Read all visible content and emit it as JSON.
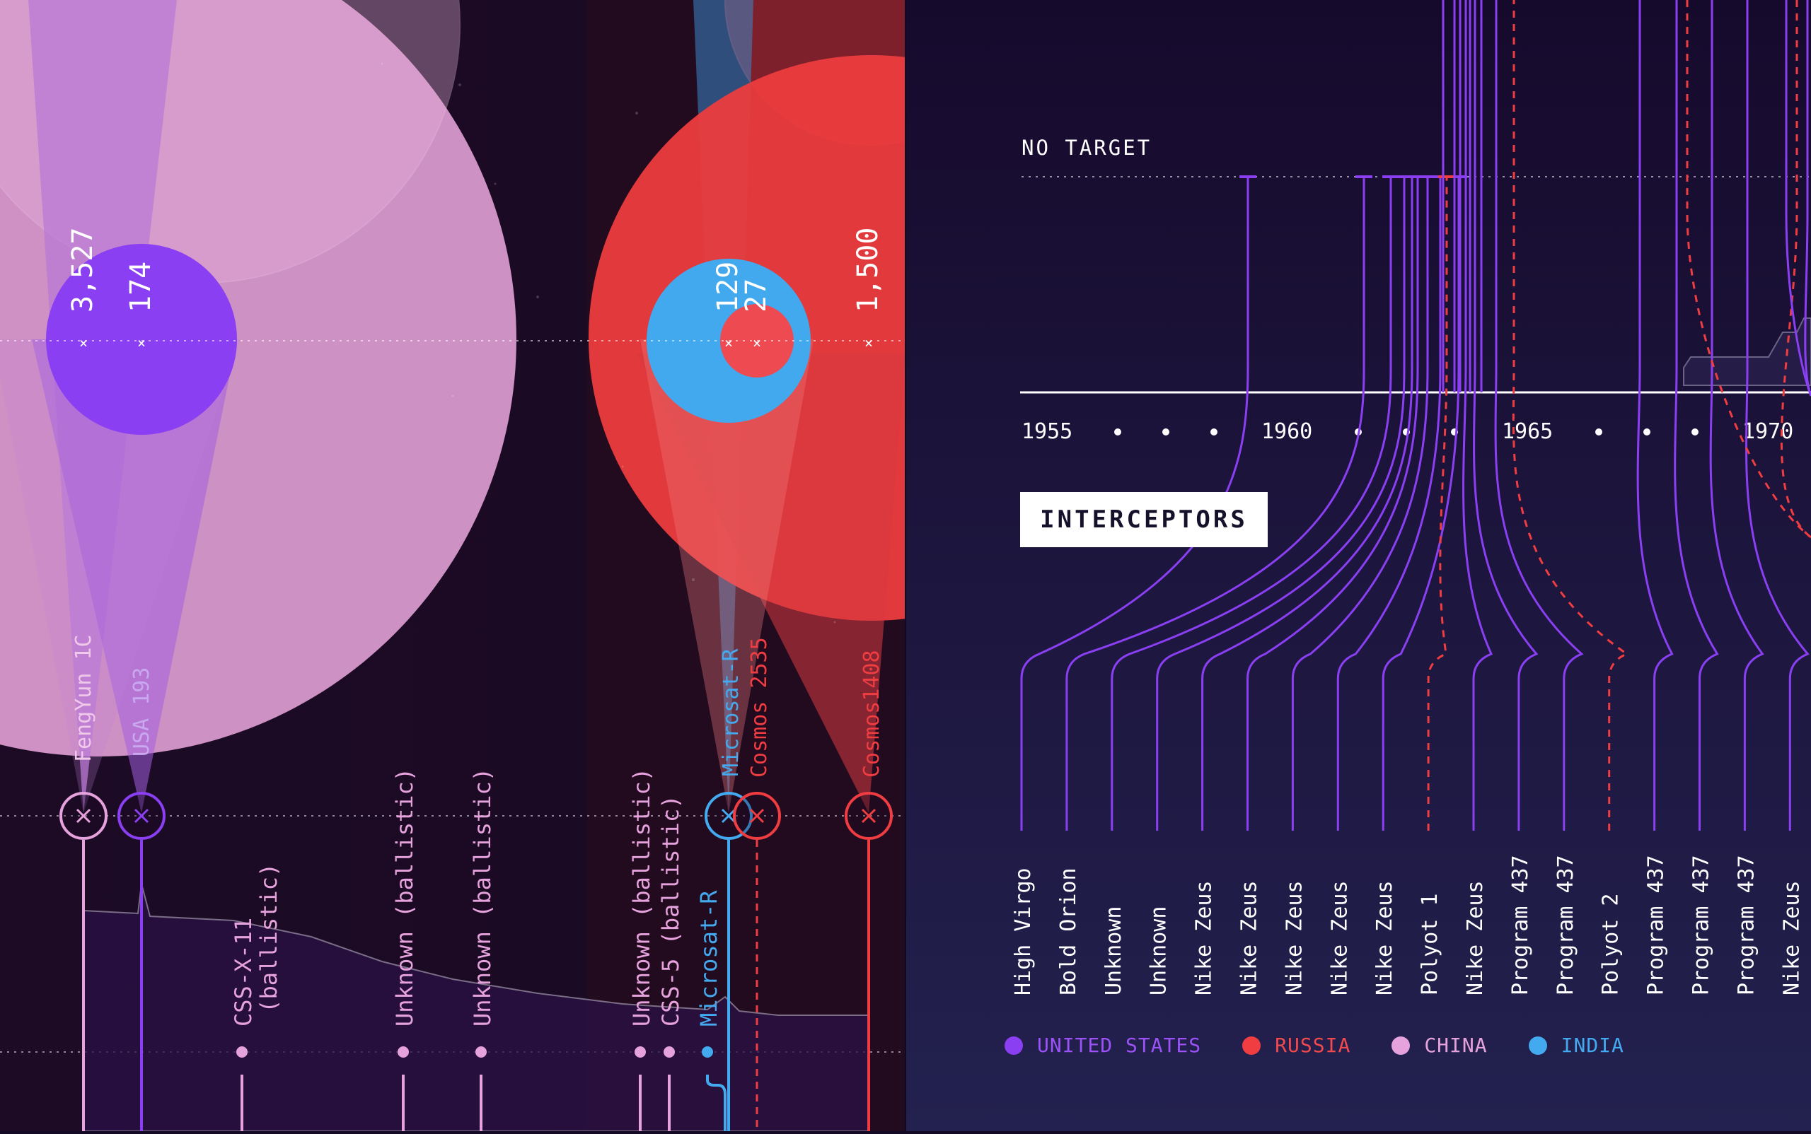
{
  "colors": {
    "usa": "#8a3ff2",
    "russia": "#f03d41",
    "china": "#e6a2dc",
    "india": "#44aaf0",
    "background_left": "#1a0b26",
    "background_right": "#1b1440"
  },
  "left_panel": {
    "circle_values": [
      {
        "id": "china-large",
        "label": "3,527",
        "country": "china"
      },
      {
        "id": "usa",
        "label": "174",
        "country": "usa"
      },
      {
        "id": "india",
        "label": "129",
        "country": "india"
      },
      {
        "id": "russia-small",
        "label": "27",
        "country": "russia"
      },
      {
        "id": "russia-large",
        "label": "1,500",
        "country": "russia"
      }
    ],
    "event_labels": [
      {
        "text": "FengYun 1C",
        "country": "china"
      },
      {
        "text": "USA 193",
        "country": "usa"
      },
      {
        "text": "Microsat-R",
        "country": "india"
      },
      {
        "text": "Cosmos 2535",
        "country": "russia"
      },
      {
        "text": "Cosmos1408",
        "country": "russia"
      }
    ],
    "test_labels": [
      {
        "text": "CSS-X-11 (ballistic)",
        "country": "china"
      },
      {
        "text": "Unknown (ballistic)",
        "country": "china"
      },
      {
        "text": "Unknown (ballistic)",
        "country": "china"
      },
      {
        "text": "Unknown (ballistic)",
        "country": "china"
      },
      {
        "text": "CSS-5 (ballistic)",
        "country": "china"
      },
      {
        "text": "Microsat-R",
        "country": "india"
      }
    ]
  },
  "right_panel": {
    "no_target_label": "NO TARGET",
    "section_tag": "INTERCEPTORS",
    "timeline_years": [
      "1955",
      "1960",
      "1965",
      "1970"
    ],
    "interceptors": [
      {
        "name": "High Virgo",
        "country": "usa"
      },
      {
        "name": "Bold Orion",
        "country": "usa"
      },
      {
        "name": "Unknown",
        "country": "usa"
      },
      {
        "name": "Unknown",
        "country": "usa"
      },
      {
        "name": "Nike Zeus",
        "country": "usa"
      },
      {
        "name": "Nike Zeus",
        "country": "usa"
      },
      {
        "name": "Nike Zeus",
        "country": "usa"
      },
      {
        "name": "Nike Zeus",
        "country": "usa"
      },
      {
        "name": "Nike Zeus",
        "country": "usa"
      },
      {
        "name": "Polyot 1",
        "country": "russia"
      },
      {
        "name": "Nike Zeus",
        "country": "usa"
      },
      {
        "name": "Program 437",
        "country": "usa"
      },
      {
        "name": "Program 437",
        "country": "usa"
      },
      {
        "name": "Polyot 2",
        "country": "russia"
      },
      {
        "name": "Program 437",
        "country": "usa"
      },
      {
        "name": "Program 437",
        "country": "usa"
      },
      {
        "name": "Program 437",
        "country": "usa"
      },
      {
        "name": "Nike Zeus",
        "country": "usa"
      }
    ]
  },
  "legend": [
    {
      "label": "UNITED STATES",
      "country": "usa"
    },
    {
      "label": "RUSSIA",
      "country": "russia"
    },
    {
      "label": "CHINA",
      "country": "china"
    },
    {
      "label": "INDIA",
      "country": "india"
    }
  ]
}
